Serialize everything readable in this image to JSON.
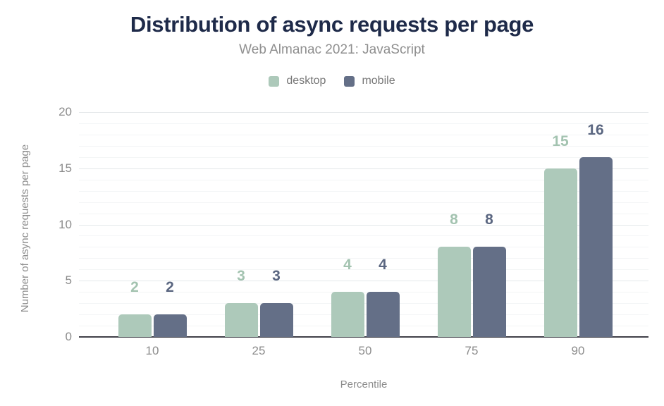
{
  "chart_data": {
    "type": "bar",
    "title": "Distribution of async requests per page",
    "subtitle": "Web Almanac 2021: JavaScript",
    "categories": [
      "10",
      "25",
      "50",
      "75",
      "90"
    ],
    "series": [
      {
        "name": "desktop",
        "color": "#adc9ba",
        "label_color": "#a3c3b0",
        "values": [
          2,
          3,
          4,
          8,
          15
        ]
      },
      {
        "name": "mobile",
        "color": "#646f87",
        "label_color": "#5b6781",
        "values": [
          2,
          3,
          4,
          8,
          16
        ]
      }
    ],
    "xlabel": "Percentile",
    "ylabel": "Number of async requests per page",
    "ylim": [
      0,
      20
    ],
    "yticks": [
      0,
      5,
      10,
      15,
      20
    ],
    "minor_grid_interval": 1,
    "grid": true,
    "legend_position": "top",
    "value_labels": true
  },
  "colors": {
    "title_text": "#1e2a49",
    "subtitle_text": "#8f8f8f",
    "axis_text": "#8c8c8c",
    "legend_text": "#767676",
    "axis_line": "#414049",
    "grid_major": "#e4e8ea",
    "grid_minor": "#f3f5f6",
    "background": "#ffffff"
  }
}
